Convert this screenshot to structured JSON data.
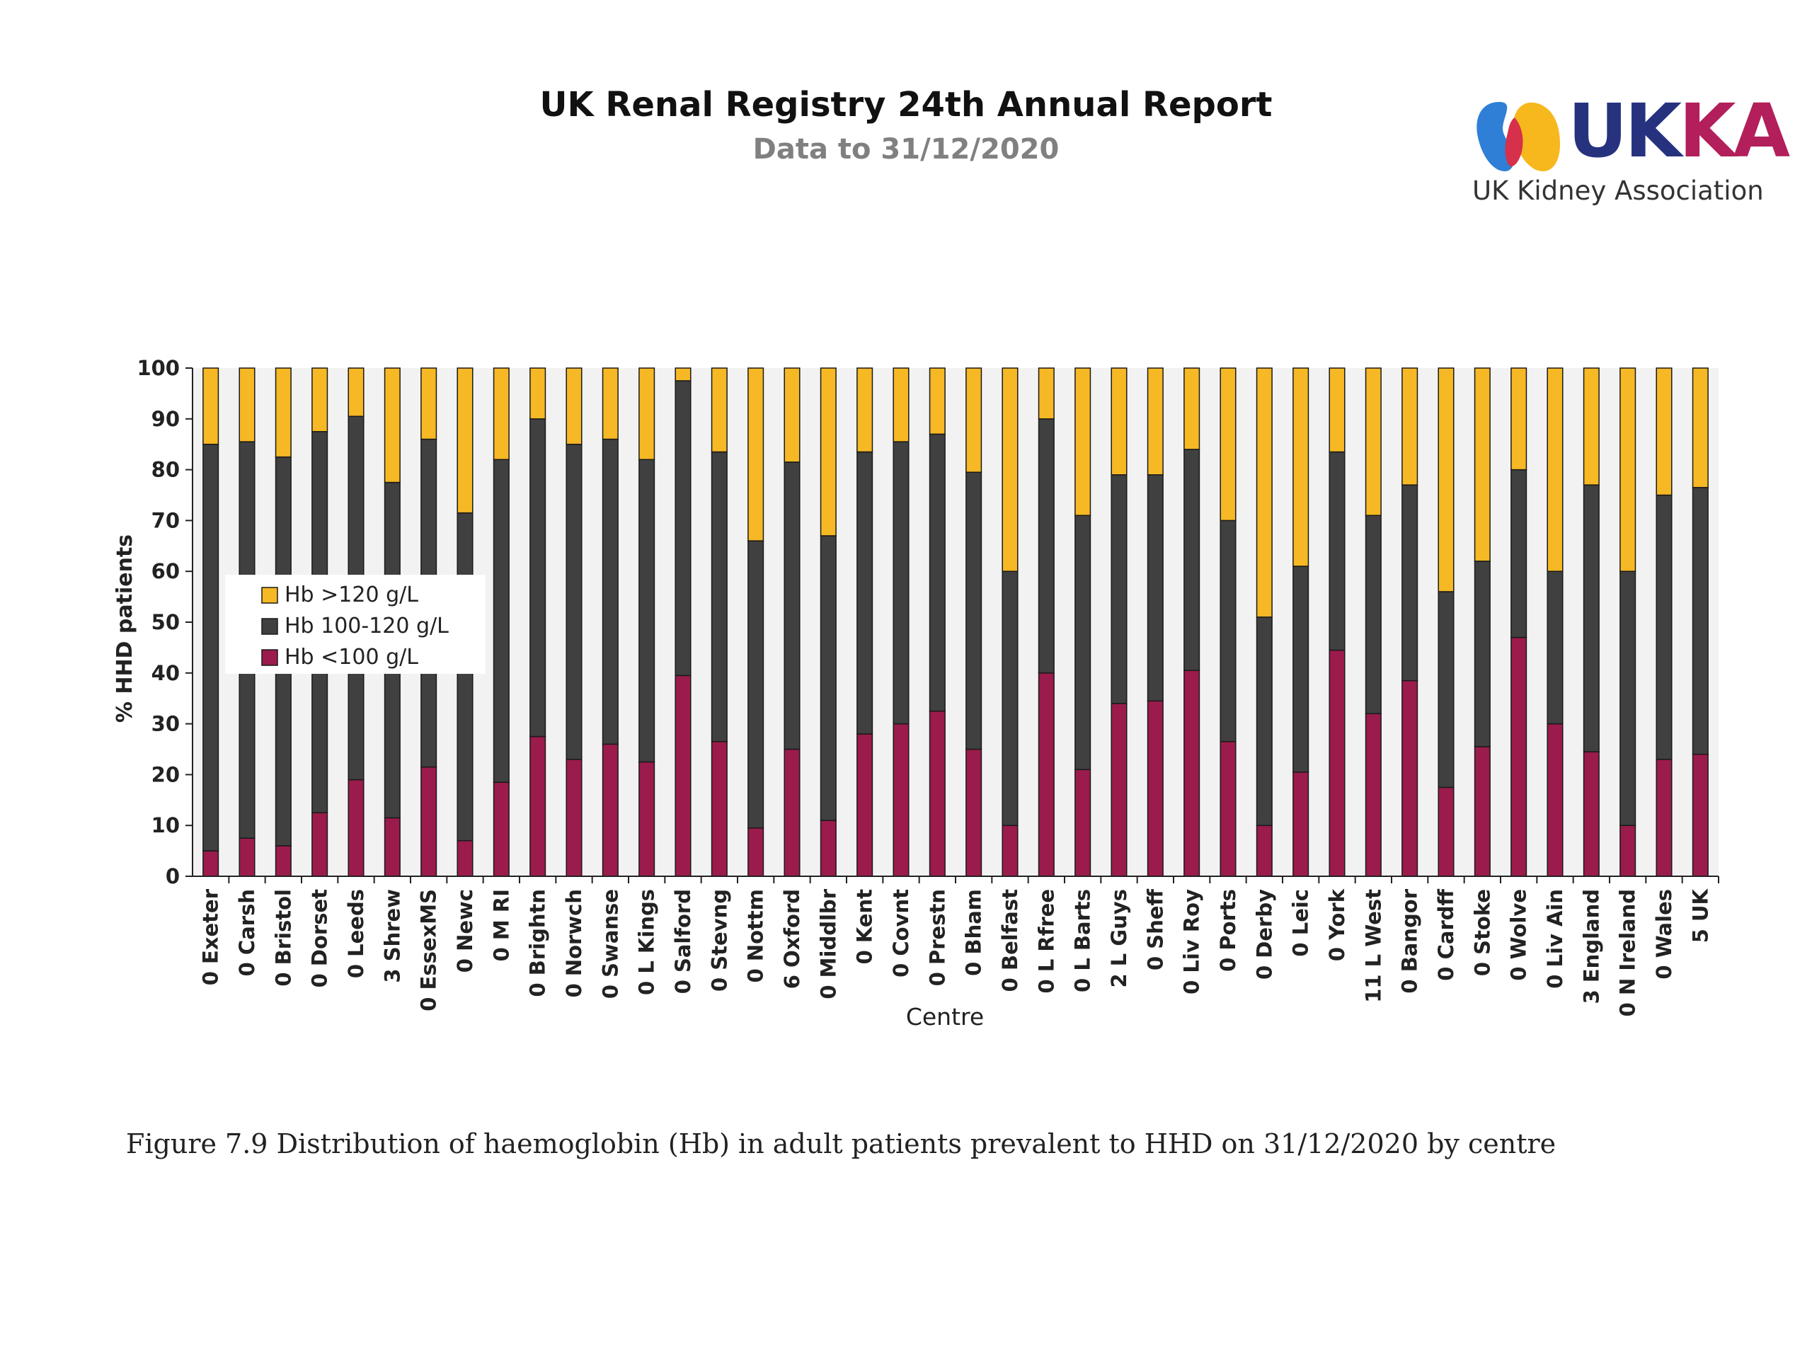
{
  "header": {
    "title": "UK Renal Registry 24th Annual Report",
    "subtitle": "Data to 31/12/2020"
  },
  "logo": {
    "text_uk": "UK",
    "text_ka": "KA",
    "subtitle": "UK Kidney Association",
    "colors": {
      "uk": "#27327f",
      "ka": "#b21f5a",
      "blue": "#2f7fd6",
      "yellow": "#f6b81c",
      "red": "#d6304a"
    }
  },
  "caption": "Figure 7.9 Distribution of haemoglobin (Hb) in adult patients prevalent to HHD on 31/12/2020 by centre",
  "colors": {
    "low": "#9b1b4c",
    "mid": "#404040",
    "high": "#f6b824",
    "plot_bg": "#f2f2f2",
    "axis": "#222222"
  },
  "chart_data": {
    "type": "bar",
    "stacked": true,
    "xlabel": "Centre",
    "ylabel": "% HHD patients",
    "ylim": [
      0,
      100
    ],
    "yticks": [
      0,
      10,
      20,
      30,
      40,
      50,
      60,
      70,
      80,
      90,
      100
    ],
    "legend_position": "left",
    "categories": [
      "0 Exeter",
      "0 Carsh",
      "0 Bristol",
      "0 Dorset",
      "0 Leeds",
      "3 Shrew",
      "0 EssexMS",
      "0 Newc",
      "0 M RI",
      "0 Brightn",
      "0 Norwch",
      "0 Swanse",
      "0 L Kings",
      "0 Salford",
      "0 Stevng",
      "0 Nottm",
      "6 Oxford",
      "0 Middlbr",
      "0 Kent",
      "0 Covnt",
      "0 Prestn",
      "0 Bham",
      "0 Belfast",
      "0 L Rfree",
      "0 L Barts",
      "2 L Guys",
      "0 Sheff",
      "0 Liv Roy",
      "0 Ports",
      "0 Derby",
      "0 Leic",
      "0 York",
      "11 L West",
      "0 Bangor",
      "0 Cardff",
      "0 Stoke",
      "0 Wolve",
      "0 Liv Ain",
      "3 England",
      "0 N Ireland",
      "0 Wales",
      "5 UK"
    ],
    "series": [
      {
        "name": "Hb <100 g/L",
        "color_key": "low",
        "values": [
          5,
          7.5,
          6,
          12.5,
          19,
          11.5,
          21.5,
          7,
          18.5,
          27.5,
          23,
          26,
          22.5,
          39.5,
          26.5,
          9.5,
          25,
          11,
          28,
          30,
          32.5,
          25,
          10,
          40,
          21,
          34,
          34.5,
          40.5,
          26.5,
          10,
          20.5,
          44.5,
          32,
          38.5,
          17.5,
          25.5,
          47,
          30,
          24.5,
          10,
          23,
          24
        ]
      },
      {
        "name": "Hb 100-120 g/L",
        "color_key": "mid",
        "values": [
          80,
          78,
          76.5,
          75,
          71.5,
          66,
          64.5,
          64.5,
          63.5,
          62.5,
          62,
          60,
          59.5,
          58,
          57,
          56.5,
          56.5,
          56,
          55.5,
          55.5,
          54.5,
          54.5,
          50,
          50,
          50,
          45,
          44.5,
          43.5,
          43.5,
          41,
          40.5,
          39,
          39,
          38.5,
          38.5,
          36.5,
          33,
          30,
          52.5,
          50,
          52,
          52.5
        ]
      },
      {
        "name": "Hb >120 g/L",
        "color_key": "high",
        "values": [
          15,
          14.5,
          17.5,
          12.5,
          9.5,
          22.5,
          14,
          28.5,
          18,
          10,
          15,
          14,
          18,
          2.5,
          16.5,
          34,
          18.5,
          33,
          16.5,
          14.5,
          13,
          20.5,
          40,
          10,
          29,
          21,
          21,
          16,
          30,
          49,
          39,
          16.5,
          29,
          23,
          44,
          38,
          20,
          40,
          23,
          40,
          25,
          23.5
        ]
      }
    ]
  }
}
